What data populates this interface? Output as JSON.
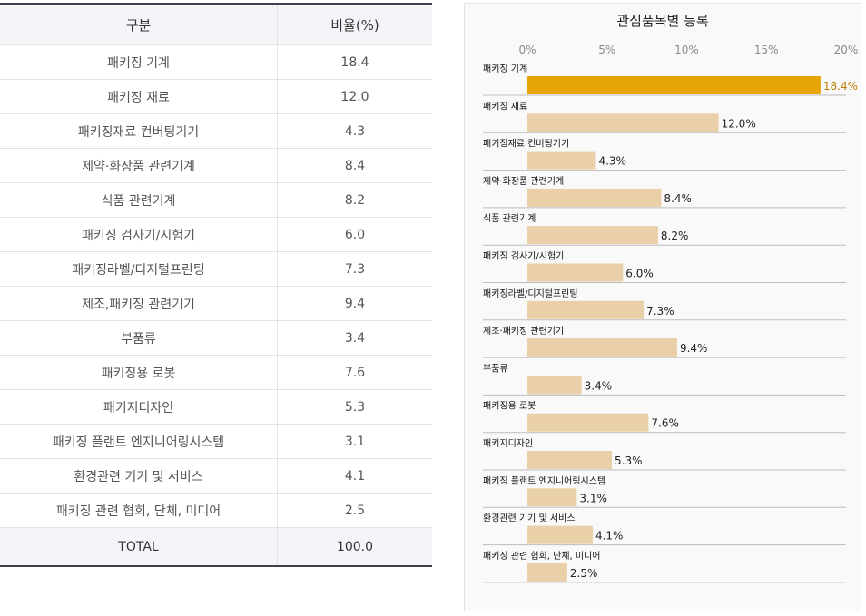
{
  "table": {
    "headers": [
      "구분",
      "비율(%)"
    ],
    "rows": [
      {
        "label": "패키징 기계",
        "value": "18.4"
      },
      {
        "label": "패키징 재료",
        "value": "12.0"
      },
      {
        "label": "패키징재료 컨버팅기기",
        "value": "4.3"
      },
      {
        "label": "제약·화장품 관련기계",
        "value": "8.4"
      },
      {
        "label": "식품 관련기계",
        "value": "8.2"
      },
      {
        "label": "패키징 검사기/시험기",
        "value": "6.0"
      },
      {
        "label": "패키징라벨/디지털프린팅",
        "value": "7.3"
      },
      {
        "label": "제조,패키징 관련기기",
        "value": "9.4"
      },
      {
        "label": "부품류",
        "value": "3.4"
      },
      {
        "label": "패키징용 로봇",
        "value": "7.6"
      },
      {
        "label": "패키지디자인",
        "value": "5.3"
      },
      {
        "label": "패키징 플랜트 엔지니어링시스템",
        "value": "3.1"
      },
      {
        "label": "환경관련 기기 및 서비스",
        "value": "4.1"
      },
      {
        "label": "패키징 관련 협회, 단체, 미디어",
        "value": "2.5"
      }
    ],
    "total": {
      "label": "TOTAL",
      "value": "100.0"
    }
  },
  "chart_data": {
    "type": "bar",
    "orientation": "horizontal",
    "title": "관심품목별 등록",
    "categories": [
      "패키징 기계",
      "패키징 재료",
      "패키징재료 컨버팅기기",
      "제약·화장품 관련기계",
      "식품 관련기계",
      "패키징 검사기/시험기",
      "패키징라벨/디지털프린팅",
      "제조·패키징 관련기기",
      "부품류",
      "패키징용 로봇",
      "패키지디자인",
      "패키징 플랜트 엔지니어링시스템",
      "환경관련 기기 및 서비스",
      "패키징 관련 협회, 단체, 미디어"
    ],
    "values": [
      18.4,
      12.0,
      4.3,
      8.4,
      8.2,
      6.0,
      7.3,
      9.4,
      3.4,
      7.6,
      5.3,
      3.1,
      4.1,
      2.5
    ],
    "value_labels": [
      "18.4%",
      "12.0%",
      "4.3%",
      "8.4%",
      "8.2%",
      "6.0%",
      "7.3%",
      "9.4%",
      "3.4%",
      "7.6%",
      "5.3%",
      "3.1%",
      "4.1%",
      "2.5%"
    ],
    "xlim": [
      0,
      20
    ],
    "ticks": [
      0,
      5,
      10,
      15,
      20
    ],
    "tick_labels": [
      "0%",
      "5%",
      "10%",
      "15%",
      "20%"
    ],
    "axis_position": "top",
    "grid": false,
    "legend": "none",
    "highlight_index": 0,
    "colors": {
      "highlight_bar": "#e6a504",
      "highlight_label": "#c07b00",
      "bar": "#e9d0a8",
      "row_line": "#bdbdbd",
      "tick_text": "#8a8a8a"
    }
  }
}
